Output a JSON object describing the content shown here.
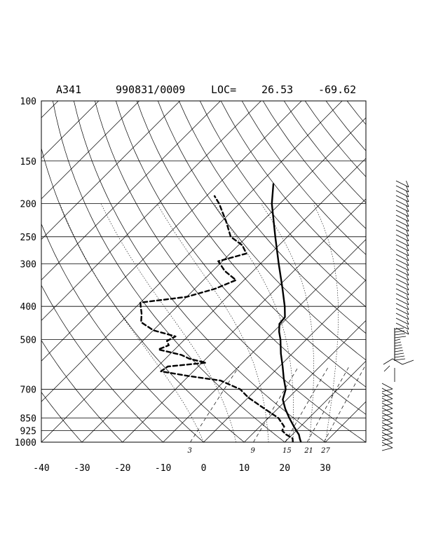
{
  "chart_data": {
    "type": "line",
    "title": {
      "station": "A341",
      "datetime": "990831/0009",
      "loc_label": "LOC=",
      "lat": "26.53",
      "lon": "-69.62"
    },
    "pressure_ticks": [
      100,
      150,
      200,
      250,
      300,
      400,
      500,
      700,
      850,
      925,
      1000
    ],
    "temp_ticks": [
      -40,
      -30,
      -20,
      -10,
      0,
      10,
      20,
      30
    ],
    "temp_range": [
      -40,
      40
    ],
    "pressure_range": [
      1000,
      100
    ],
    "skew": "45deg",
    "mixing_ratio_labels": [
      "3",
      "9",
      "15",
      "21",
      "27"
    ],
    "mixing_ratio_values": [
      3,
      9,
      15,
      21,
      27
    ],
    "grid": true,
    "series": [
      {
        "style": "solid",
        "points": [
          [
            1000,
            24.0
          ],
          [
            980,
            23.0
          ],
          [
            950,
            21.6
          ],
          [
            925,
            20.0
          ],
          [
            900,
            18.4
          ],
          [
            850,
            15.2
          ],
          [
            800,
            12.0
          ],
          [
            750,
            9.0
          ],
          [
            700,
            7.2
          ],
          [
            650,
            4.0
          ],
          [
            600,
            0.8
          ],
          [
            550,
            -2.8
          ],
          [
            500,
            -6.4
          ],
          [
            475,
            -8.6
          ],
          [
            450,
            -10.5
          ],
          [
            430,
            -10.8
          ],
          [
            400,
            -13.5
          ],
          [
            350,
            -19.0
          ],
          [
            300,
            -25.5
          ],
          [
            250,
            -33.0
          ],
          [
            200,
            -42.0
          ],
          [
            175,
            -46.5
          ]
        ]
      },
      {
        "style": "dashed",
        "points": [
          [
            1000,
            22.0
          ],
          [
            975,
            21.0
          ],
          [
            950,
            18.5
          ],
          [
            925,
            16.5
          ],
          [
            900,
            16.0
          ],
          [
            850,
            12.5
          ],
          [
            800,
            7.0
          ],
          [
            740,
            0.0
          ],
          [
            700,
            -4.0
          ],
          [
            660,
            -11.0
          ],
          [
            640,
            -20.0
          ],
          [
            620,
            -28.0
          ],
          [
            600,
            -27.5
          ],
          [
            585,
            -19.0
          ],
          [
            570,
            -24.0
          ],
          [
            555,
            -27.0
          ],
          [
            535,
            -34.0
          ],
          [
            520,
            -32.5
          ],
          [
            505,
            -34.0
          ],
          [
            490,
            -33.0
          ],
          [
            470,
            -40.0
          ],
          [
            445,
            -45.0
          ],
          [
            420,
            -47.0
          ],
          [
            400,
            -49.0
          ],
          [
            390,
            -50.0
          ],
          [
            375,
            -40.0
          ],
          [
            355,
            -35.0
          ],
          [
            335,
            -32.0
          ],
          [
            315,
            -37.0
          ],
          [
            295,
            -41.0
          ],
          [
            280,
            -36.0
          ],
          [
            265,
            -39.0
          ],
          [
            250,
            -44.0
          ],
          [
            225,
            -49.0
          ],
          [
            200,
            -55.0
          ],
          [
            190,
            -58.0
          ]
        ]
      }
    ],
    "wind_barbs": true
  }
}
